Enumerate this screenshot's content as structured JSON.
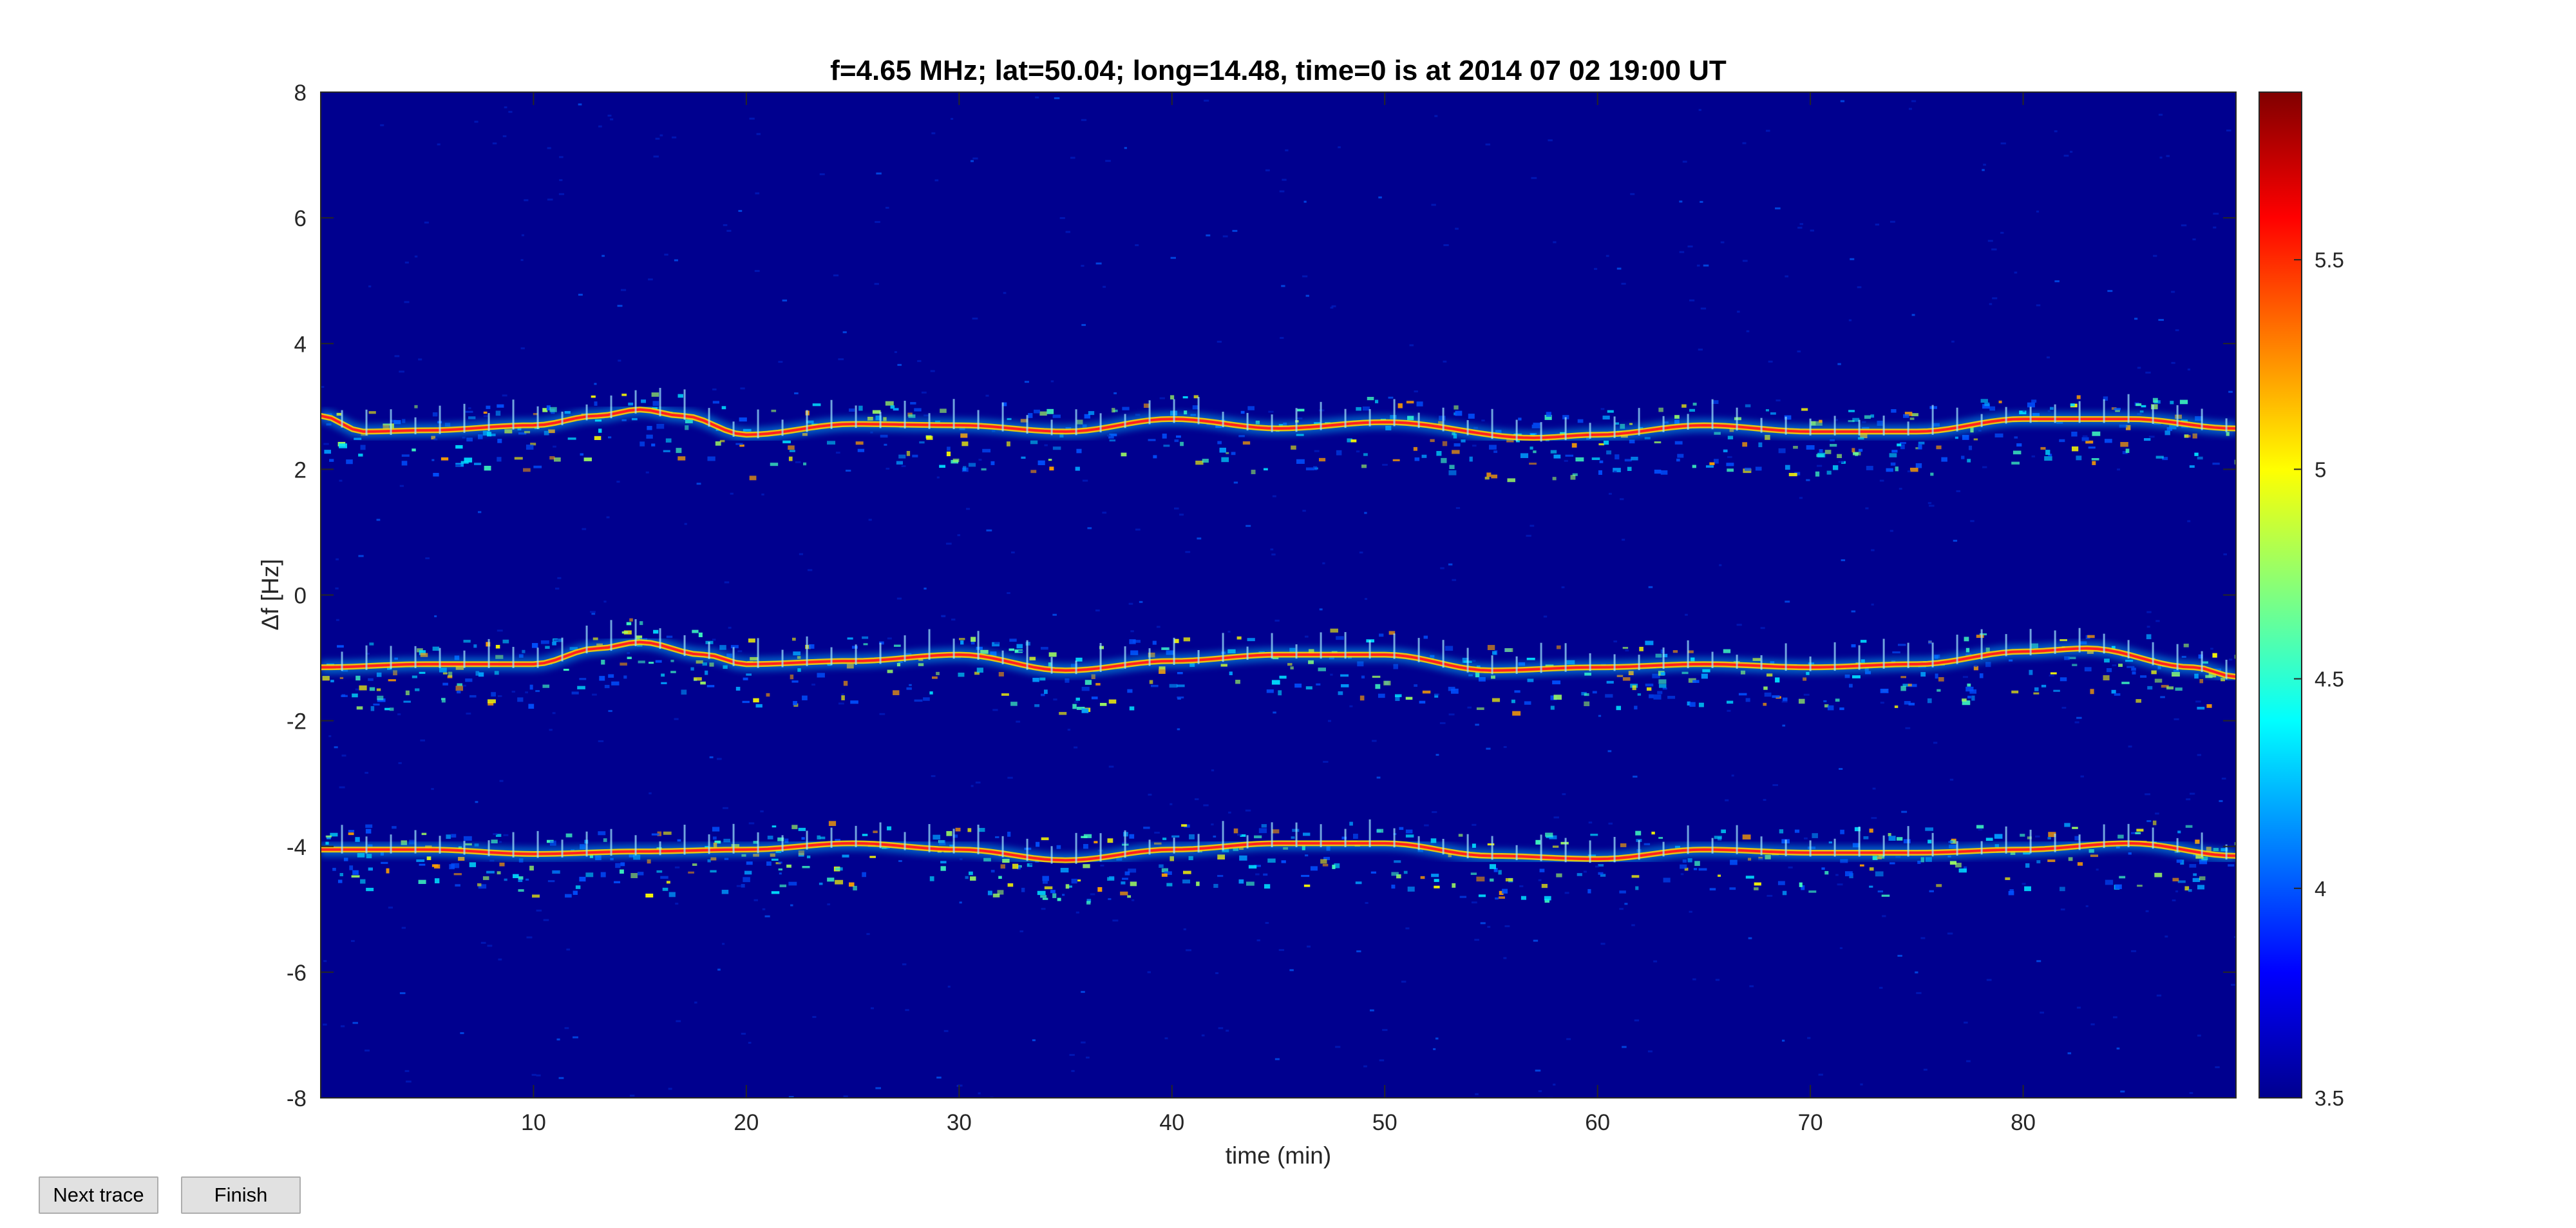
{
  "window": {
    "buttons": {
      "next_trace": "Next trace",
      "finish": "Finish"
    }
  },
  "chart_data": {
    "type": "heatmap",
    "title": "f=4.65 MHz;  lat=50.04; long=14.48, time=0 is at 2014 07 02 19:00 UT",
    "xlabel": "time (min)",
    "ylabel": "Δf [Hz]",
    "xlim": [
      0,
      90
    ],
    "ylim": [
      -8,
      8
    ],
    "x_ticks": [
      10,
      20,
      30,
      40,
      50,
      60,
      70,
      80
    ],
    "y_ticks": [
      -8,
      -6,
      -4,
      -2,
      0,
      2,
      4,
      6,
      8
    ],
    "colorbar": {
      "range": [
        3.5,
        5.9
      ],
      "ticks": [
        3.5,
        4,
        4.5,
        5,
        5.5
      ],
      "colormap": "jet"
    },
    "grid": false,
    "background_color": "#00008f",
    "traces": [
      {
        "time": [
          0,
          2,
          5,
          10,
          13,
          15,
          17,
          20,
          25,
          30,
          35,
          40,
          45,
          50,
          57,
          60,
          65,
          70,
          75,
          80,
          85,
          90
        ],
        "delta_f": [
          2.85,
          2.6,
          2.62,
          2.7,
          2.85,
          2.95,
          2.85,
          2.55,
          2.72,
          2.7,
          2.6,
          2.8,
          2.65,
          2.75,
          2.5,
          2.55,
          2.7,
          2.6,
          2.6,
          2.8,
          2.8,
          2.65
        ]
      },
      {
        "time": [
          0,
          5,
          10,
          13,
          15,
          18,
          20,
          25,
          30,
          35,
          40,
          45,
          50,
          55,
          60,
          65,
          70,
          75,
          80,
          83,
          88,
          90
        ],
        "delta_f": [
          -1.15,
          -1.1,
          -1.1,
          -0.85,
          -0.75,
          -0.95,
          -1.1,
          -1.05,
          -0.95,
          -1.2,
          -1.05,
          -0.95,
          -0.95,
          -1.2,
          -1.15,
          -1.1,
          -1.15,
          -1.1,
          -0.9,
          -0.85,
          -1.15,
          -1.3
        ]
      },
      {
        "time": [
          0,
          5,
          10,
          15,
          20,
          25,
          30,
          35,
          40,
          45,
          50,
          55,
          60,
          65,
          70,
          75,
          80,
          85,
          90
        ],
        "delta_f": [
          -4.05,
          -4.05,
          -4.12,
          -4.08,
          -4.05,
          -3.95,
          -4.05,
          -4.22,
          -4.05,
          -3.95,
          -3.95,
          -4.15,
          -4.2,
          -4.05,
          -4.1,
          -4.1,
          -4.05,
          -3.95,
          -4.15
        ]
      }
    ]
  }
}
